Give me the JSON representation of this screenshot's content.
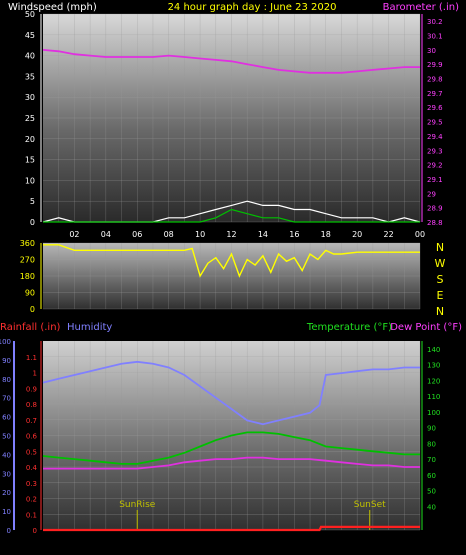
{
  "header": {
    "left_label": "Windspeed (mph)",
    "title": "24 hour graph day : June 23 2020",
    "right_label": "Barometer (.in)"
  },
  "colors": {
    "windspeed": "#ffffff",
    "wind_gust": "#00c000",
    "barometer": "#e030e0",
    "wind_direction": "#ffff00",
    "humidity": "#8080ff",
    "temperature": "#00c000",
    "dew_point": "#e030e0",
    "rainfall": "#ff2020",
    "sun_event": "#c0c000"
  },
  "chart_data": [
    {
      "type": "line",
      "name_key": "wind-barometer-panel",
      "x_ticks": [
        "02",
        "04",
        "06",
        "08",
        "10",
        "12",
        "14",
        "16",
        "18",
        "20",
        "22",
        "00"
      ],
      "x_range_hours": [
        0,
        24
      ],
      "left_axis": {
        "ylim": [
          0,
          50
        ],
        "ticks": [
          "0",
          "5",
          "10",
          "15",
          "20",
          "25",
          "30",
          "35",
          "40",
          "45",
          "50"
        ]
      },
      "right_axis": {
        "ylim": [
          28.8,
          30.25
        ],
        "ticks": [
          "28.8",
          "28.9",
          "29",
          "29.1",
          "29.2",
          "29.3",
          "29.4",
          "29.5",
          "29.6",
          "29.7",
          "29.8",
          "29.9",
          "30",
          "30.1",
          "30.2"
        ]
      },
      "series": [
        {
          "key": "barometer",
          "axis": "right",
          "x": [
            0,
            1,
            2,
            3,
            4,
            5,
            6,
            7,
            8,
            9,
            10,
            11,
            12,
            13,
            14,
            15,
            16,
            17,
            18,
            19,
            20,
            21,
            22,
            23,
            24
          ],
          "y": [
            30.0,
            29.99,
            29.97,
            29.96,
            29.95,
            29.95,
            29.95,
            29.95,
            29.96,
            29.95,
            29.94,
            29.93,
            29.92,
            29.9,
            29.88,
            29.86,
            29.85,
            29.84,
            29.84,
            29.84,
            29.85,
            29.86,
            29.87,
            29.88,
            29.88
          ]
        },
        {
          "key": "windspeed",
          "axis": "left",
          "x": [
            0,
            1,
            2,
            3,
            4,
            5,
            6,
            7,
            8,
            9,
            10,
            11,
            12,
            13,
            14,
            15,
            16,
            17,
            18,
            19,
            20,
            21,
            22,
            23,
            24
          ],
          "y": [
            0,
            1,
            0,
            0,
            0,
            0,
            0,
            0,
            1,
            1,
            2,
            3,
            4,
            5,
            4,
            4,
            3,
            3,
            2,
            1,
            1,
            1,
            0,
            1,
            0
          ]
        },
        {
          "key": "wind_gust",
          "axis": "left",
          "x": [
            0,
            2,
            4,
            6,
            8,
            9,
            10,
            11,
            12,
            13,
            14,
            15,
            16,
            17,
            18,
            20,
            22,
            24
          ],
          "y": [
            0,
            0,
            0,
            0,
            0,
            0,
            0,
            1,
            3,
            2,
            1,
            1,
            0,
            0,
            0,
            0,
            0,
            0
          ]
        }
      ]
    },
    {
      "type": "scatter",
      "name_key": "wind-direction-panel",
      "x_range_hours": [
        0,
        24
      ],
      "ylim": [
        0,
        360
      ],
      "left_ticks": [
        "0",
        "90",
        "180",
        "270",
        "360"
      ],
      "right_labels": [
        "N",
        "W",
        "S",
        "E",
        "N"
      ],
      "series": [
        {
          "key": "wind_direction",
          "x": [
            0,
            1,
            2,
            3,
            4,
            5,
            6,
            7,
            8,
            9,
            9.5,
            10,
            10.5,
            11,
            11.5,
            12,
            12.5,
            13,
            13.5,
            14,
            14.5,
            15,
            15.5,
            16,
            16.5,
            17,
            17.5,
            18,
            18.5,
            19,
            20,
            21,
            22,
            23,
            24
          ],
          "y": [
            350,
            350,
            320,
            320,
            320,
            320,
            320,
            320,
            320,
            320,
            330,
            180,
            250,
            280,
            220,
            300,
            180,
            270,
            240,
            290,
            200,
            300,
            260,
            280,
            210,
            300,
            270,
            320,
            300,
            300,
            310,
            310,
            310,
            310,
            310
          ]
        }
      ]
    },
    {
      "type": "line",
      "name_key": "temp-humidity-panel",
      "x_range_hours": [
        0,
        24
      ],
      "labels": {
        "rainfall": "Rainfall (.in)",
        "humidity": "Humidity",
        "temperature": "Temperature (°F)",
        "dew_point": "Dew Point (°F)"
      },
      "humidity_axis": {
        "ylim": [
          0,
          100
        ],
        "ticks": [
          "0",
          "10",
          "20",
          "30",
          "40",
          "50",
          "60",
          "70",
          "80",
          "90",
          "100"
        ]
      },
      "rain_axis": {
        "ylim": [
          0,
          1.2
        ],
        "ticks": [
          "0",
          "0.1",
          "0.2",
          "0.3",
          "0.4",
          "0.5",
          "0.6",
          "0.7",
          "0.8",
          "0.9",
          "1",
          "1.1"
        ]
      },
      "temp_axis": {
        "ylim": [
          25,
          145
        ],
        "ticks": [
          "40",
          "50",
          "60",
          "70",
          "80",
          "90",
          "100",
          "110",
          "120",
          "130",
          "140"
        ]
      },
      "sun_events": [
        {
          "label": "SunRise",
          "x": 6.0
        },
        {
          "label": "SunSet",
          "x": 20.8
        }
      ],
      "series": [
        {
          "key": "humidity",
          "axis": "humidity",
          "x": [
            0,
            1,
            2,
            3,
            4,
            5,
            6,
            7,
            8,
            9,
            10,
            11,
            12,
            13,
            14,
            15,
            16,
            17,
            17.6,
            18,
            19,
            20,
            21,
            22,
            23,
            24
          ],
          "y": [
            78,
            80,
            82,
            84,
            86,
            88,
            89,
            88,
            86,
            82,
            76,
            70,
            64,
            58,
            56,
            58,
            60,
            62,
            66,
            82,
            83,
            84,
            85,
            85,
            86,
            86
          ]
        },
        {
          "key": "temperature",
          "axis": "temp",
          "x": [
            0,
            1,
            2,
            3,
            4,
            5,
            6,
            7,
            8,
            9,
            10,
            11,
            12,
            13,
            14,
            15,
            16,
            17,
            18,
            19,
            20,
            21,
            22,
            23,
            24
          ],
          "y": [
            72,
            71,
            70,
            69,
            68,
            67,
            67,
            69,
            71,
            74,
            78,
            82,
            85,
            87,
            87,
            86,
            84,
            82,
            78,
            77,
            76,
            75,
            74,
            73,
            73
          ]
        },
        {
          "key": "dew_point",
          "axis": "temp",
          "x": [
            0,
            1,
            2,
            3,
            4,
            5,
            6,
            7,
            8,
            9,
            10,
            11,
            12,
            13,
            14,
            15,
            16,
            17,
            18,
            19,
            20,
            21,
            22,
            23,
            24
          ],
          "y": [
            64,
            64,
            64,
            64,
            64,
            64,
            64,
            65,
            66,
            68,
            69,
            70,
            70,
            71,
            71,
            70,
            70,
            70,
            69,
            68,
            67,
            66,
            66,
            65,
            65
          ]
        },
        {
          "key": "rainfall",
          "axis": "rain",
          "x": [
            0,
            17.6,
            17.7,
            24
          ],
          "y": [
            0,
            0,
            0.02,
            0.02
          ]
        }
      ]
    }
  ]
}
